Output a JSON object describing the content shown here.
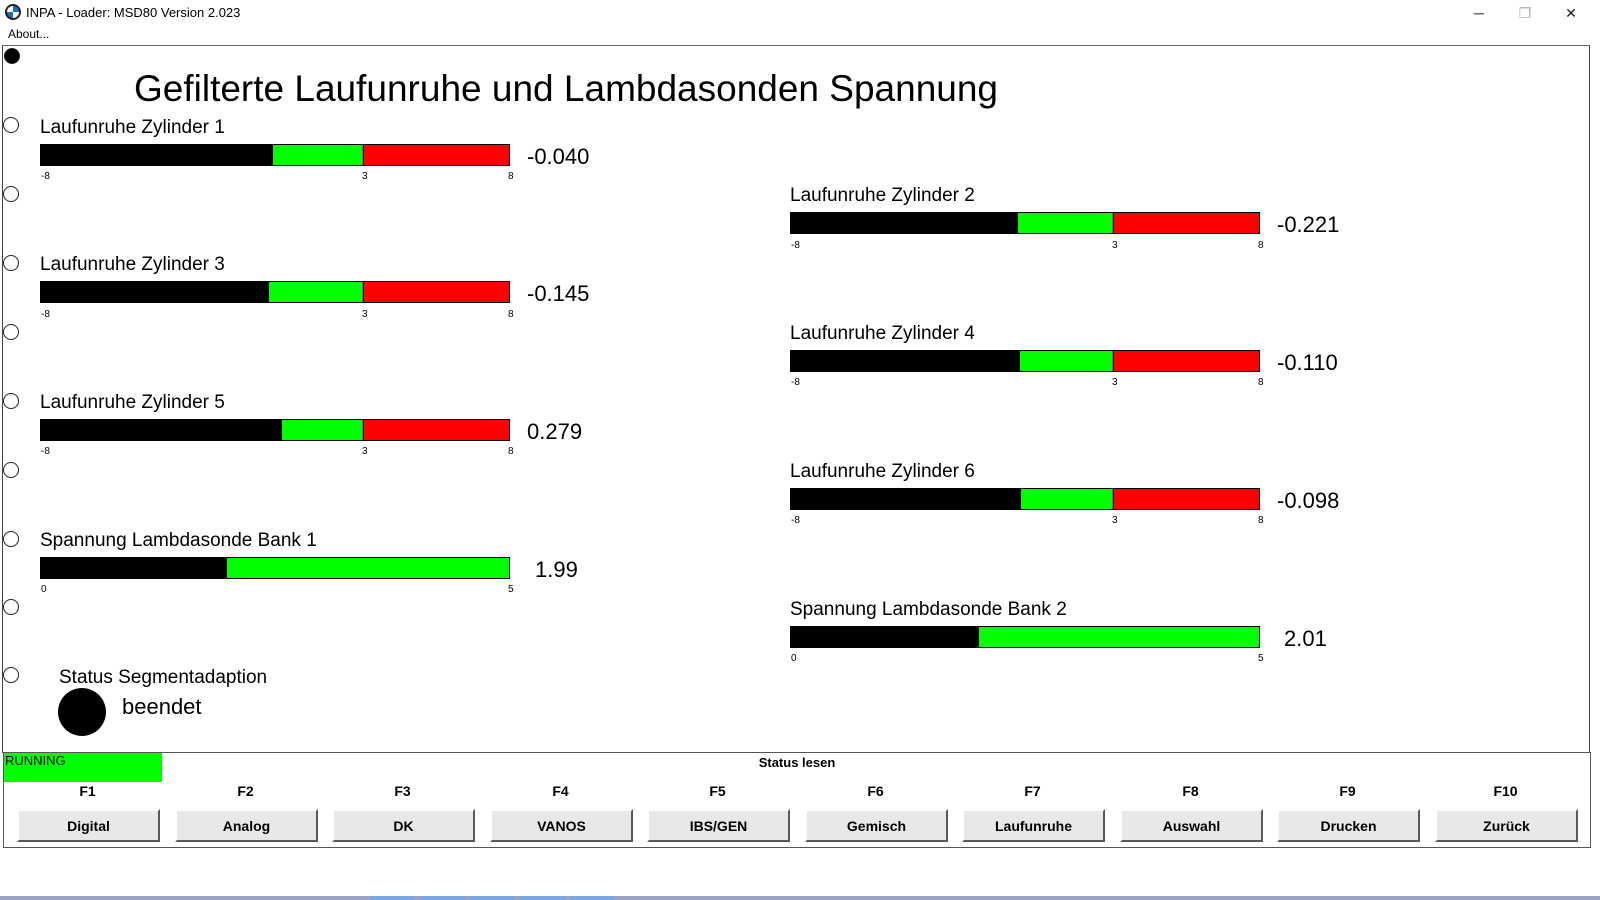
{
  "window": {
    "title": "INPA - Loader:  MSD80 Version 2.023",
    "minimize_glyph": "─",
    "maximize_glyph": "❐",
    "close_glyph": "✕"
  },
  "menu": {
    "about": "About..."
  },
  "page_title": "Gefilterte Laufunruhe und Lambdasonden Spannung",
  "colors": {
    "good": "#00ff00",
    "bad": "#ff0000",
    "indicator": "#000000"
  },
  "gauges": [
    {
      "id": "zyl1",
      "label": "Laufunruhe Zylinder 1",
      "value": "-0.040",
      "level": 0.495,
      "ticks": [
        "-8",
        "3",
        "8"
      ]
    },
    {
      "id": "zyl2",
      "label": "Laufunruhe Zylinder 2",
      "value": "-0.221",
      "level": 0.485,
      "ticks": [
        "-8",
        "3",
        "8"
      ]
    },
    {
      "id": "zyl3",
      "label": "Laufunruhe Zylinder 3",
      "value": "-0.145",
      "level": 0.488,
      "ticks": [
        "-8",
        "3",
        "8"
      ]
    },
    {
      "id": "zyl4",
      "label": "Laufunruhe Zylinder 4",
      "value": "-0.110",
      "level": 0.49,
      "ticks": [
        "-8",
        "3",
        "8"
      ]
    },
    {
      "id": "zyl5",
      "label": "Laufunruhe Zylinder 5",
      "value": "0.279",
      "level": 0.515,
      "ticks": [
        "-8",
        "3",
        "8"
      ]
    },
    {
      "id": "zyl6",
      "label": "Laufunruhe Zylinder 6",
      "value": "-0.098",
      "level": 0.492,
      "ticks": [
        "-8",
        "3",
        "8"
      ]
    },
    {
      "id": "lambda1",
      "label": "Spannung Lambdasonde Bank 1",
      "value": "1.99",
      "level": 0.398,
      "ticks": [
        "0",
        "5"
      ]
    },
    {
      "id": "lambda2",
      "label": "Spannung Lambdasonde Bank 2",
      "value": "2.01",
      "level": 0.402,
      "ticks": [
        "0",
        "5"
      ]
    }
  ],
  "segment_status": {
    "label": "Status Segmentadaption",
    "value": "beendet"
  },
  "status_bar": {
    "running": "RUNNING",
    "mode": "Status lesen"
  },
  "function_keys": [
    {
      "key": "F1",
      "label": "Digital"
    },
    {
      "key": "F2",
      "label": "Analog"
    },
    {
      "key": "F3",
      "label": "DK"
    },
    {
      "key": "F4",
      "label": "VANOS"
    },
    {
      "key": "F5",
      "label": "IBS/GEN"
    },
    {
      "key": "F6",
      "label": "Gemisch"
    },
    {
      "key": "F7",
      "label": "Laufunruhe"
    },
    {
      "key": "F8",
      "label": "Auswahl"
    },
    {
      "key": "F9",
      "label": "Drucken"
    },
    {
      "key": "F10",
      "label": "Zurück"
    }
  ]
}
